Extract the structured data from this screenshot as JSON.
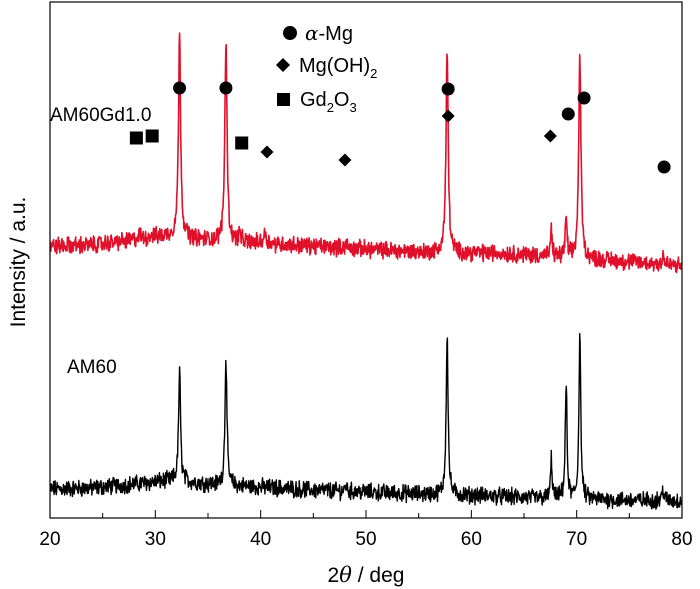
{
  "chart_data": {
    "type": "line",
    "title": "",
    "xlabel": "2θ / deg",
    "xlabel_parts": {
      "prefix": "2",
      "symbol": "θ",
      "suffix": " / deg"
    },
    "ylabel": "Intensity / a.u.",
    "xlim": [
      20,
      80
    ],
    "x_ticks": [
      20,
      30,
      40,
      50,
      60,
      70,
      80
    ],
    "y_ticks_shown": false,
    "grid": false,
    "series": [
      {
        "name": "AM60Gd1.0",
        "color": "#e0102a",
        "baseline": [
          [
            20,
            42
          ],
          [
            24,
            43
          ],
          [
            28,
            48
          ],
          [
            30,
            51
          ],
          [
            31,
            52
          ],
          [
            32,
            52
          ],
          [
            34,
            49
          ],
          [
            36,
            47
          ],
          [
            40,
            45
          ],
          [
            45,
            42
          ],
          [
            50,
            39
          ],
          [
            55,
            36
          ],
          [
            58,
            35
          ],
          [
            62,
            35
          ],
          [
            66,
            33
          ],
          [
            70,
            30
          ],
          [
            74,
            27
          ],
          [
            78,
            24
          ],
          [
            80,
            22
          ]
        ],
        "peaks": [
          {
            "x": 32.3,
            "height": 200,
            "width": 0.25
          },
          {
            "x": 36.7,
            "height": 200,
            "width": 0.25
          },
          {
            "x": 57.7,
            "height": 200,
            "width": 0.25
          },
          {
            "x": 70.3,
            "height": 200,
            "width": 0.25
          },
          {
            "x": 69.0,
            "height": 38,
            "width": 0.2
          },
          {
            "x": 67.6,
            "height": 25,
            "width": 0.18
          },
          {
            "x": 78.2,
            "height": 10,
            "width": 0.18
          },
          {
            "x": 38.0,
            "height": 8,
            "width": 0.25
          },
          {
            "x": 40.4,
            "height": 10,
            "width": 0.3
          },
          {
            "x": 48.1,
            "height": 5,
            "width": 0.2
          },
          {
            "x": 28.5,
            "height": 4,
            "width": 0.3
          },
          {
            "x": 29.6,
            "height": 3,
            "width": 0.3
          }
        ]
      },
      {
        "name": "AM60",
        "color": "#000000",
        "baseline": [
          [
            20,
            12
          ],
          [
            24,
            13
          ],
          [
            28,
            17
          ],
          [
            30,
            19
          ],
          [
            31,
            20
          ],
          [
            32,
            20
          ],
          [
            34,
            18
          ],
          [
            36,
            16
          ],
          [
            40,
            14
          ],
          [
            45,
            11
          ],
          [
            50,
            9
          ],
          [
            55,
            7
          ],
          [
            58,
            6
          ],
          [
            62,
            5
          ],
          [
            66,
            3
          ],
          [
            70,
            2
          ],
          [
            74,
            1
          ],
          [
            78,
            0.5
          ],
          [
            80,
            0
          ]
        ],
        "peaks": [
          {
            "x": 32.3,
            "height": 112,
            "width": 0.22
          },
          {
            "x": 36.7,
            "height": 128,
            "width": 0.22
          },
          {
            "x": 57.7,
            "height": 160,
            "width": 0.22
          },
          {
            "x": 69.0,
            "height": 114,
            "width": 0.2
          },
          {
            "x": 70.3,
            "height": 168,
            "width": 0.2
          },
          {
            "x": 67.6,
            "height": 40,
            "width": 0.18
          },
          {
            "x": 78.2,
            "height": 12,
            "width": 0.2
          },
          {
            "x": 48.1,
            "height": 6,
            "width": 0.2
          }
        ]
      }
    ],
    "phase_markers": [
      {
        "phase": "α-Mg",
        "shape": "circle",
        "x": 32.3,
        "y": 200
      },
      {
        "phase": "α-Mg",
        "shape": "circle",
        "x": 36.7,
        "y": 200
      },
      {
        "phase": "α-Mg",
        "shape": "circle",
        "x": 57.8,
        "y": 199
      },
      {
        "phase": "α-Mg",
        "shape": "circle",
        "x": 70.7,
        "y": 190
      },
      {
        "phase": "α-Mg",
        "shape": "circle",
        "x": 69.2,
        "y": 174
      },
      {
        "phase": "α-Mg",
        "shape": "circle",
        "x": 78.3,
        "y": 121
      },
      {
        "phase": "Mg(OH)2",
        "shape": "diamond",
        "x": 57.8,
        "y": 172
      },
      {
        "phase": "Mg(OH)2",
        "shape": "diamond",
        "x": 67.5,
        "y": 152
      },
      {
        "phase": "Mg(OH)2",
        "shape": "diamond",
        "x": 40.6,
        "y": 136
      },
      {
        "phase": "Mg(OH)2",
        "shape": "diamond",
        "x": 48.0,
        "y": 128
      },
      {
        "phase": "Gd2O3",
        "shape": "square",
        "x": 28.2,
        "y": 150
      },
      {
        "phase": "Gd2O3",
        "shape": "square",
        "x": 29.7,
        "y": 152
      },
      {
        "phase": "Gd2O3",
        "shape": "square",
        "x": 38.2,
        "y": 145
      }
    ],
    "legend": {
      "placement": "top-center",
      "entries": [
        {
          "shape": "circle",
          "label": "α-Mg",
          "prefix": "α",
          "rest": "-Mg"
        },
        {
          "shape": "diamond",
          "label": "Mg(OH)2",
          "base": "Mg(OH)",
          "sub": "2",
          "tail": ""
        },
        {
          "shape": "square",
          "label": "Gd2O3",
          "base": "Gd",
          "sub": "2",
          "mid": "O",
          "sub2": "3"
        }
      ]
    },
    "series_labels": [
      {
        "text": "AM60Gd1.0",
        "x": 21.8,
        "y": 166
      },
      {
        "text": "AM60",
        "x": 21.8,
        "y": 82
      }
    ]
  }
}
